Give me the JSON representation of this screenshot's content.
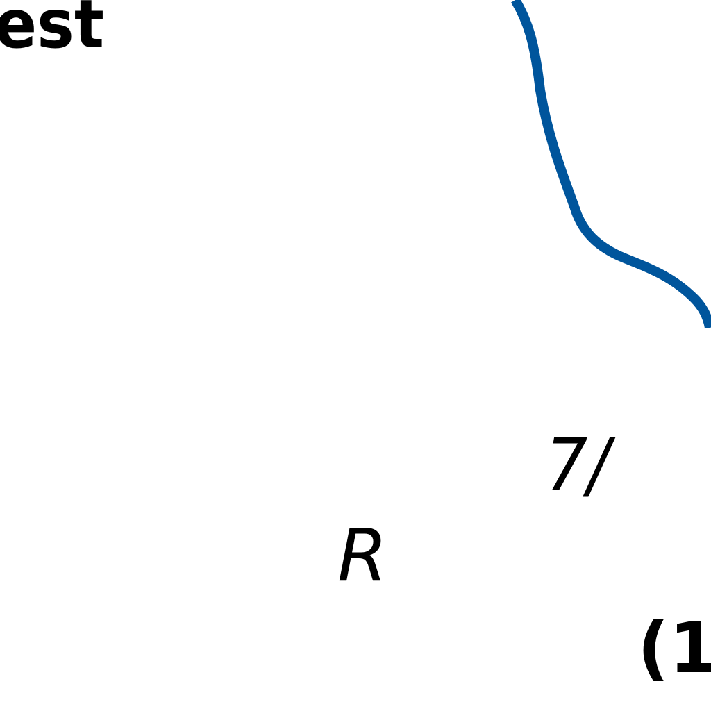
{
  "labels": {
    "top_left": "est",
    "ratio": "7/",
    "r_label": "R",
    "bottom_right": "(1"
  },
  "colors": {
    "curve": "#00559C",
    "text": "#000000",
    "background": "#FFFFFF"
  }
}
